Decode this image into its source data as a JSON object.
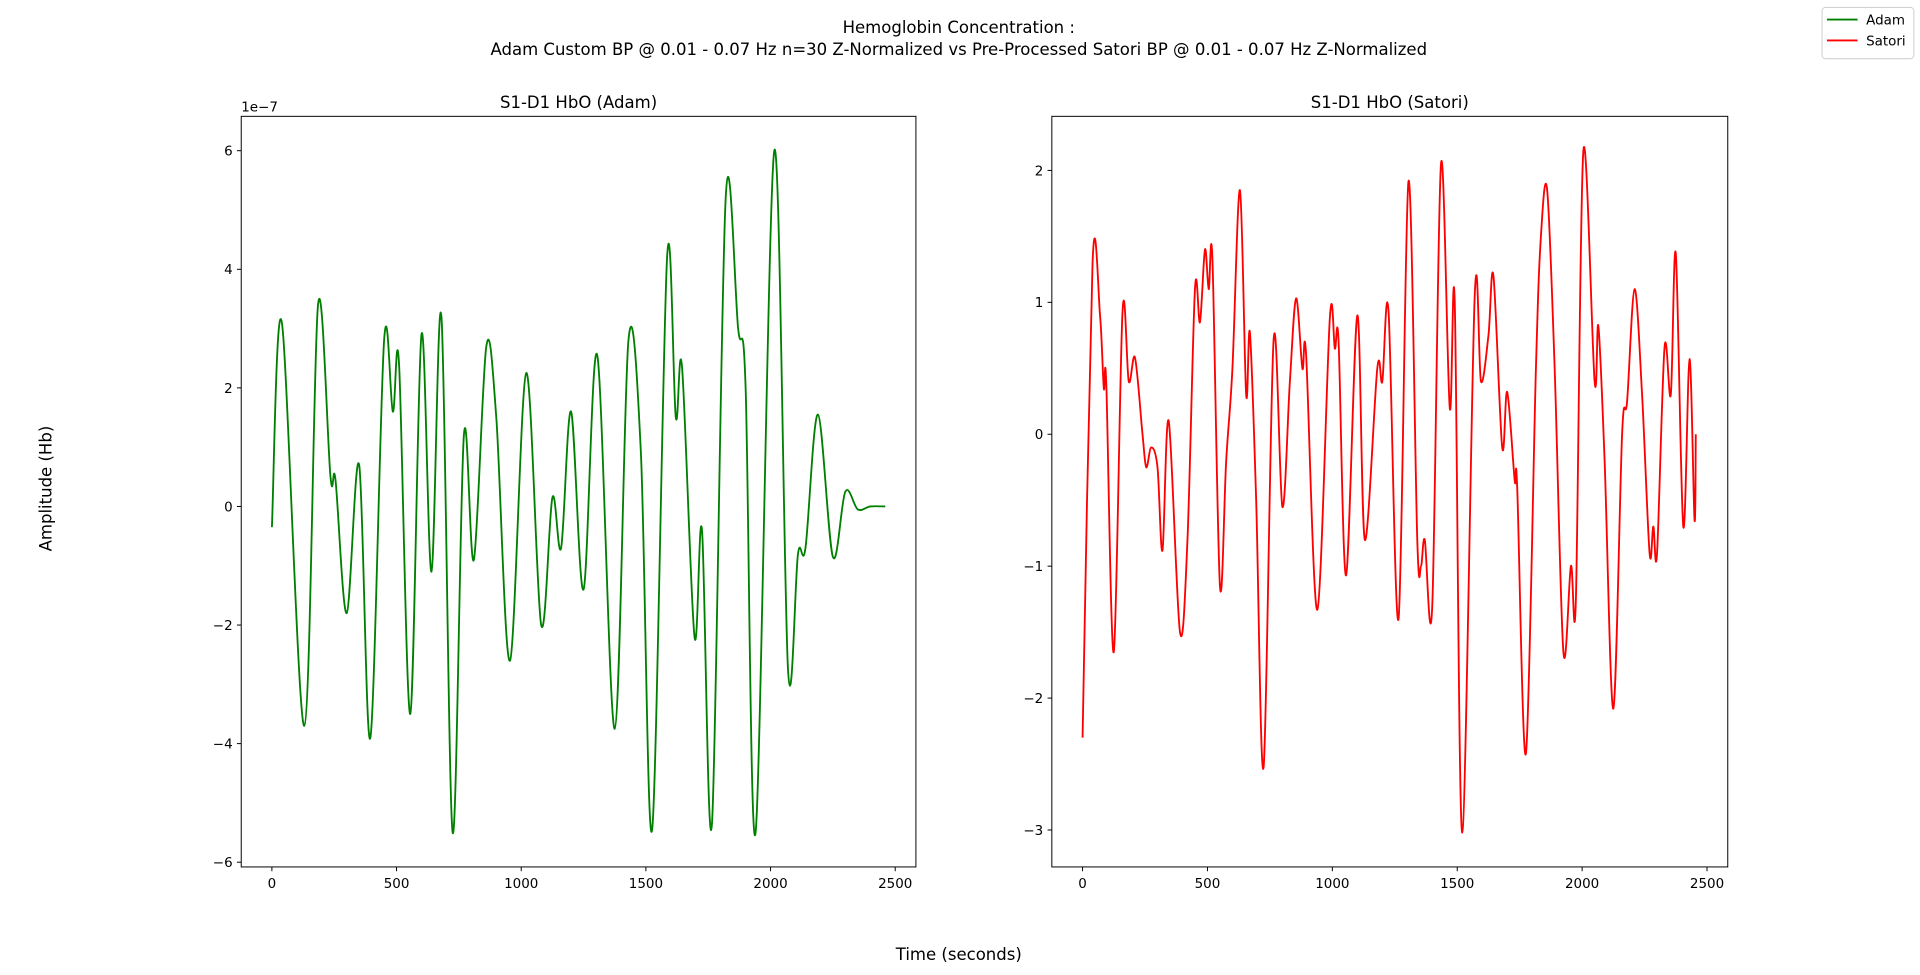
{
  "title": [
    "Hemoglobin Concentration :",
    "Adam Custom BP @ 0.01 - 0.07 Hz n=30 Z-Normalized vs Pre-Processed Satori BP @ 0.01 - 0.07 Hz Z-Normalized"
  ],
  "xlabel": "Time (seconds)",
  "ylabel": "Amplitude (Hb)",
  "legend": "upper right",
  "chart_data": [
    {
      "type": "line",
      "title": "S1-D1 HbO (Adam)",
      "y_offset_text": "1e−7",
      "x": [
        0,
        40,
        130,
        185,
        235,
        255,
        300,
        350,
        395,
        450,
        485,
        510,
        555,
        600,
        640,
        680,
        725,
        770,
        810,
        860,
        900,
        955,
        1020,
        1080,
        1125,
        1160,
        1200,
        1250,
        1305,
        1375,
        1430,
        1480,
        1525,
        1585,
        1620,
        1645,
        1695,
        1725,
        1765,
        1820,
        1870,
        1900,
        1940,
        2015,
        2070,
        2110,
        2140,
        2190,
        2250,
        2300,
        2350,
        2400,
        2460
      ],
      "series": [
        {
          "name": "Adam",
          "color": "#008000",
          "values": [
            -0.35,
            3.1,
            -3.7,
            3.4,
            0.5,
            0.45,
            -1.8,
            0.7,
            -3.9,
            2.8,
            1.6,
            2.4,
            -3.5,
            2.9,
            -1.1,
            3.2,
            -5.5,
            1.2,
            -0.9,
            2.7,
            1.5,
            -2.6,
            2.25,
            -2.0,
            0.15,
            -0.7,
            1.6,
            -1.4,
            2.55,
            -3.75,
            2.8,
            0.9,
            -5.45,
            4.2,
            1.5,
            2.35,
            -2.2,
            -0.4,
            -5.35,
            5.2,
            3.0,
            2.0,
            -5.5,
            6.0,
            -2.75,
            -0.8,
            -0.7,
            1.55,
            -0.85,
            0.25,
            -0.05,
            0.0,
            0.0
          ]
        }
      ],
      "xlim": [
        -123,
        2583
      ],
      "ylim": [
        -6.08,
        6.58
      ],
      "xticks": [
        0,
        500,
        1000,
        1500,
        2000,
        2500
      ],
      "yticks": [
        -6,
        -4,
        -2,
        0,
        2,
        4,
        6
      ]
    },
    {
      "type": "line",
      "title": "S1-D1 HbO (Satori)",
      "x": [
        0,
        40,
        70,
        85,
        95,
        125,
        160,
        185,
        210,
        240,
        255,
        275,
        300,
        320,
        345,
        390,
        420,
        450,
        470,
        490,
        505,
        520,
        550,
        575,
        600,
        630,
        655,
        670,
        695,
        725,
        765,
        800,
        830,
        855,
        880,
        895,
        940,
        990,
        1010,
        1025,
        1055,
        1100,
        1130,
        1180,
        1200,
        1225,
        1265,
        1305,
        1340,
        1355,
        1370,
        1400,
        1435,
        1470,
        1490,
        1520,
        1570,
        1595,
        1625,
        1645,
        1680,
        1700,
        1730,
        1740,
        1775,
        1815,
        1835,
        1860,
        1890,
        1925,
        1955,
        1975,
        2005,
        2050,
        2065,
        2090,
        2125,
        2160,
        2180,
        2210,
        2240,
        2270,
        2285,
        2300,
        2330,
        2355,
        2375,
        2405,
        2430,
        2450,
        2455
      ],
      "series": [
        {
          "name": "Satori",
          "color": "#ff0000",
          "values": [
            -2.3,
            1.3,
            0.9,
            0.35,
            0.38,
            -1.65,
            0.93,
            0.4,
            0.58,
            0.0,
            -0.25,
            -0.1,
            -0.25,
            -0.88,
            0.1,
            -1.5,
            -0.8,
            1.1,
            0.85,
            1.4,
            1.1,
            1.32,
            -1.15,
            -0.2,
            0.5,
            1.85,
            0.3,
            0.77,
            -0.5,
            -2.52,
            0.72,
            -0.55,
            0.4,
            1.03,
            0.5,
            0.6,
            -1.33,
            0.88,
            0.65,
            0.7,
            -1.07,
            0.9,
            -0.8,
            0.5,
            0.4,
            0.93,
            -1.4,
            1.92,
            -0.8,
            -1.0,
            -0.8,
            -1.3,
            2.05,
            0.2,
            1.0,
            -3.02,
            1.05,
            0.4,
            0.75,
            1.2,
            -0.1,
            0.32,
            -0.35,
            -0.4,
            -2.42,
            0.5,
            1.5,
            1.85,
            0.5,
            -1.65,
            -1.0,
            -1.25,
            2.15,
            0.4,
            0.82,
            -0.2,
            -2.08,
            0.0,
            0.25,
            1.1,
            0.3,
            -0.9,
            -0.7,
            -0.9,
            0.66,
            0.3,
            1.37,
            -0.7,
            0.57,
            -0.65,
            0.0
          ]
        }
      ],
      "xlim": [
        -123,
        2583
      ],
      "ylim": [
        -3.28,
        2.41
      ],
      "xticks": [
        0,
        500,
        1000,
        1500,
        2000,
        2500
      ],
      "yticks": [
        -3,
        -2,
        -1,
        0,
        1,
        2
      ]
    }
  ]
}
